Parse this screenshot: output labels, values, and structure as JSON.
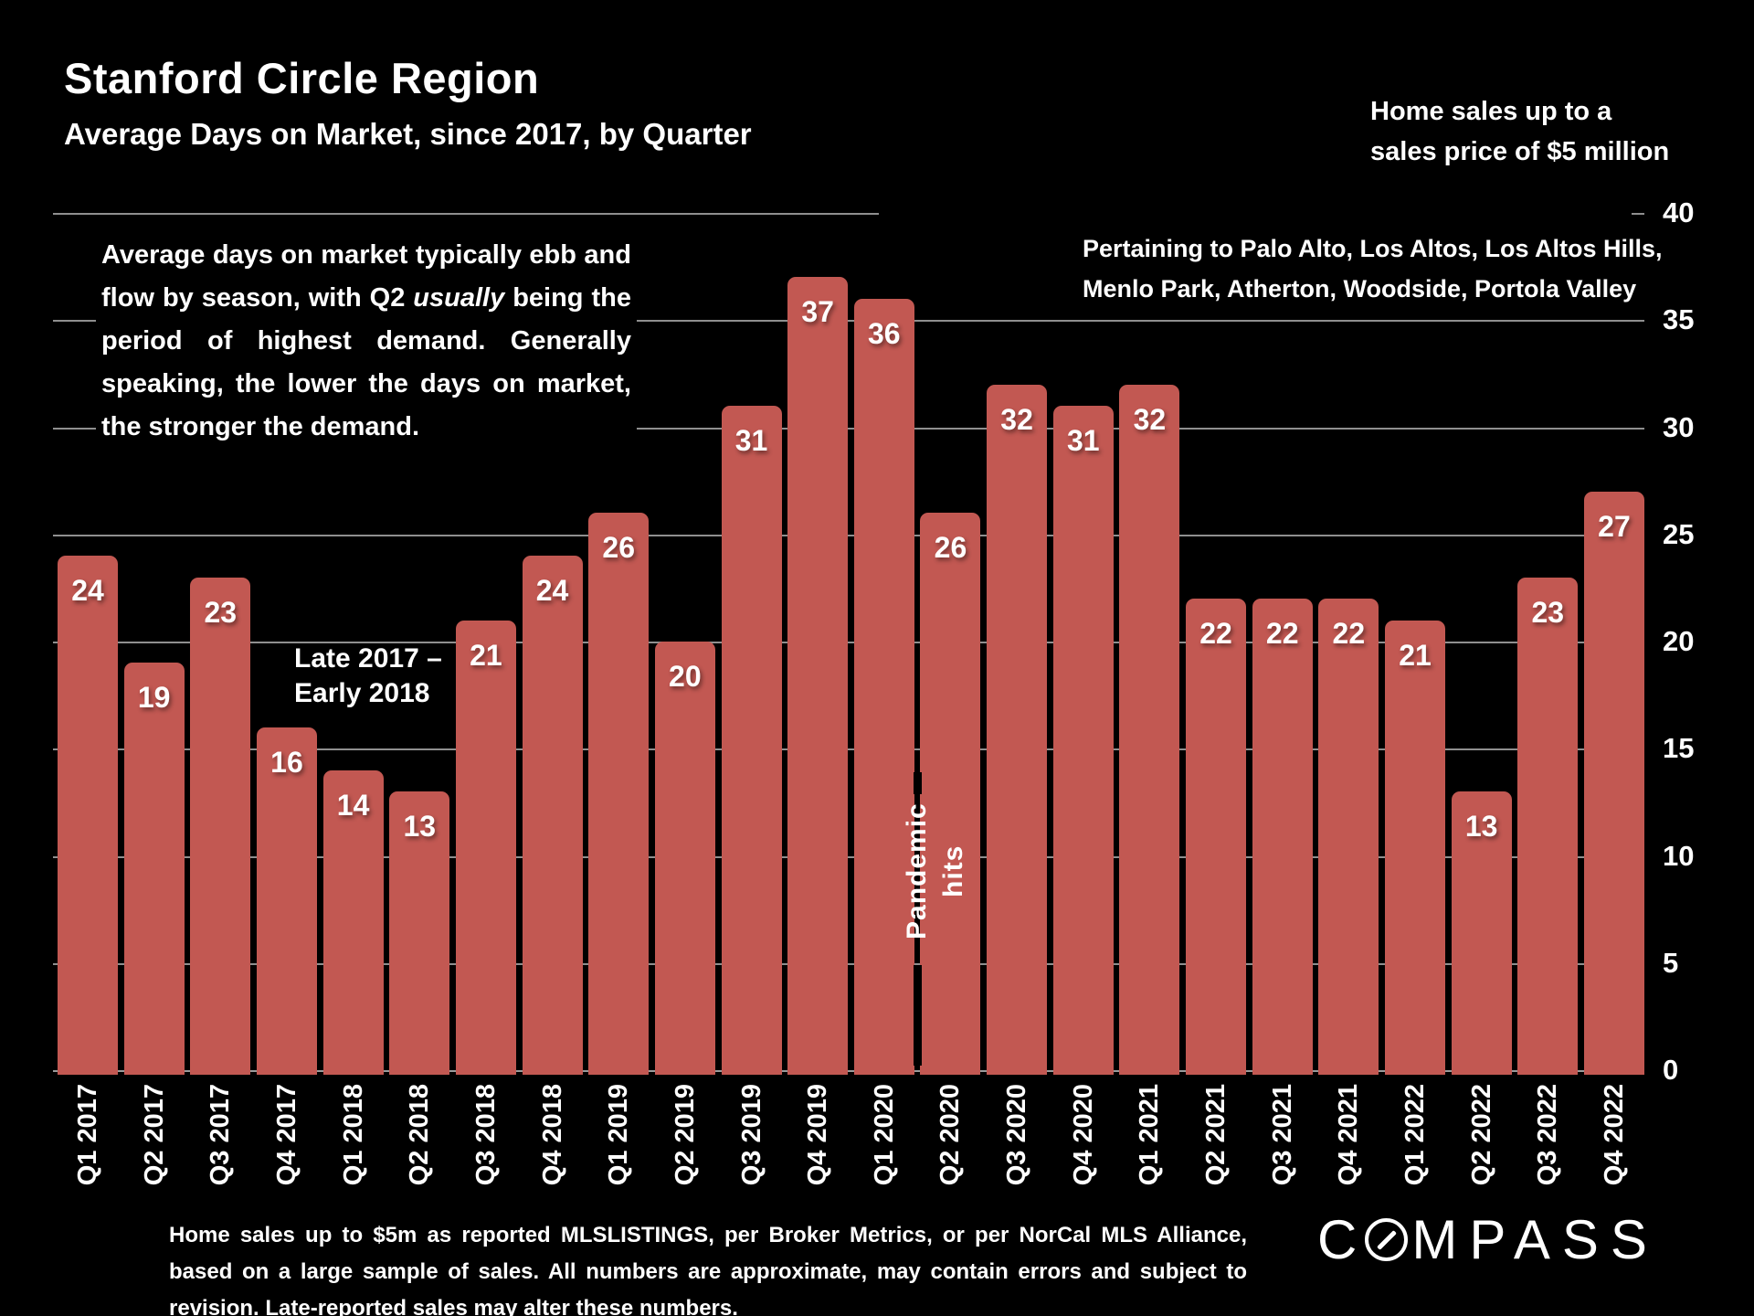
{
  "header": {
    "title": "Stanford Circle Region",
    "subtitle": "Average Days on Market, since 2017, by Quarter",
    "top_right_note": [
      "Home sales up to a",
      "sales price of $5 million"
    ],
    "pertaining_note": [
      "Pertaining to Palo Alto, Los Altos, Los Altos Hills,",
      "Menlo Park, Atherton, Woodside, Portola Valley"
    ]
  },
  "annotations": {
    "paragraph": {
      "pre": "Average days on market typically ebb and flow by season, with Q2 ",
      "italic": "usually",
      "post": " being the period of highest demand. Generally speaking, the lower the days on market, the stronger the demand."
    },
    "late_note": [
      "Late 2017 –",
      "Early 2018"
    ],
    "pandemic_note": "Pandemic hits"
  },
  "footer": {
    "lines": [
      "Home sales up to $5m as reported MLSLISTINGS, per Broker Metrics, or per NorCal MLS Alliance,",
      "based on a large sample of sales. All numbers are approximate, may contain errors and subject to",
      "revision. Late-reported sales may alter these numbers."
    ]
  },
  "logo": {
    "pre": "C",
    "post": "MPASS"
  },
  "colors": {
    "background": "#000000",
    "bar": "#C25852",
    "gridline": "#8f8f8f",
    "text": "#ffffff"
  },
  "chart_data": {
    "type": "bar",
    "title": "Average Days on Market, since 2017, by Quarter",
    "categories": [
      "Q1 2017",
      "Q2 2017",
      "Q3 2017",
      "Q4 2017",
      "Q1 2018",
      "Q2 2018",
      "Q3 2018",
      "Q4 2018",
      "Q1 2019",
      "Q2 2019",
      "Q3 2019",
      "Q4 2019",
      "Q1 2020",
      "Q2 2020",
      "Q3 2020",
      "Q4 2020",
      "Q1 2021",
      "Q2 2021",
      "Q3 2021",
      "Q4 2021",
      "Q1 2022",
      "Q2 2022",
      "Q3 2022",
      "Q4 2022"
    ],
    "values": [
      24,
      19,
      23,
      16,
      14,
      13,
      21,
      24,
      26,
      20,
      31,
      37,
      36,
      26,
      32,
      31,
      32,
      22,
      22,
      22,
      21,
      13,
      23,
      27
    ],
    "xlabel": "",
    "ylabel": "",
    "ylim": [
      0,
      40
    ],
    "ytick_step": 5,
    "yaxis_side": "right",
    "grid": true,
    "bar_value_labels": true,
    "legend": "none"
  }
}
